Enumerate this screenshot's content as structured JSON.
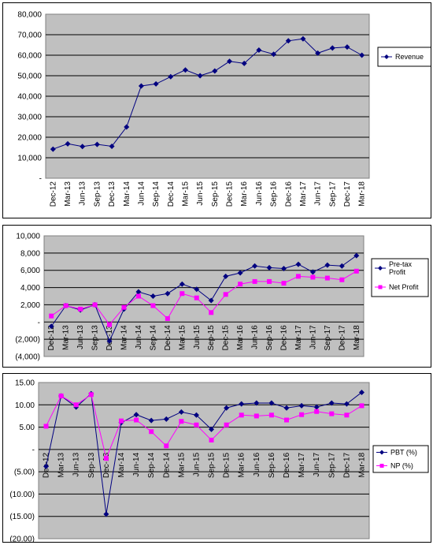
{
  "chart_data": [
    {
      "type": "line",
      "categories": [
        "Dec-12",
        "Mar-13",
        "Jun-13",
        "Sep-13",
        "Dec-13",
        "Mar-14",
        "Jun-14",
        "Sep-14",
        "Dec-14",
        "Mar-15",
        "Jun-15",
        "Sep-15",
        "Dec-15",
        "Mar-16",
        "Jun-16",
        "Sep-16",
        "Dec-16",
        "Mar-17",
        "Jun-17",
        "Sep-17",
        "Dec-17",
        "Mar-18"
      ],
      "series": [
        {
          "name": "Revenue",
          "color": "#000080",
          "marker": "diamond",
          "values": [
            14200,
            16800,
            15500,
            16500,
            15600,
            25000,
            45000,
            46000,
            49500,
            52800,
            50000,
            52300,
            57000,
            56000,
            62500,
            60500,
            67000,
            68000,
            61000,
            63500,
            64000,
            60000
          ]
        }
      ],
      "yticks": [
        "80,000",
        "70,000",
        "60,000",
        "50,000",
        "40,000",
        "30,000",
        "20,000",
        "10,000",
        "-"
      ],
      "ylim": [
        0,
        80000
      ],
      "grid": true,
      "legend_position": "right",
      "plot_background": "#c0c0c0"
    },
    {
      "type": "line",
      "categories": [
        "Dec-12",
        "Mar-13",
        "Jun-13",
        "Sep-13",
        "Dec-13",
        "Mar-14",
        "Jun-14",
        "Sep-14",
        "Dec-14",
        "Mar-15",
        "Jun-15",
        "Sep-15",
        "Dec-15",
        "Mar-16",
        "Jun-16",
        "Sep-16",
        "Dec-16",
        "Mar-17",
        "Jun-17",
        "Sep-17",
        "Dec-17",
        "Mar-18"
      ],
      "series": [
        {
          "name": "Pre-tax Profit",
          "color": "#000080",
          "marker": "diamond",
          "values": [
            -500,
            1900,
            1400,
            2000,
            -2200,
            1500,
            3500,
            3000,
            3300,
            4400,
            3800,
            2500,
            5300,
            5700,
            6500,
            6300,
            6200,
            6700,
            5800,
            6600,
            6500,
            7700
          ]
        },
        {
          "name": "Net Profit",
          "color": "#ff00ff",
          "marker": "square",
          "values": [
            700,
            1900,
            1500,
            2000,
            -300,
            1700,
            3000,
            1900,
            400,
            3300,
            2800,
            1100,
            3200,
            4400,
            4700,
            4700,
            4500,
            5300,
            5200,
            5100,
            4900,
            5900
          ]
        }
      ],
      "yticks": [
        "10,000",
        "8,000",
        "6,000",
        "4,000",
        "2,000",
        "-",
        "(2,000)",
        "(4,000)"
      ],
      "ylim": [
        -4000,
        10000
      ],
      "grid": true,
      "legend_position": "right",
      "plot_background": "#c0c0c0"
    },
    {
      "type": "line",
      "categories": [
        "Dec-12",
        "Mar-13",
        "Jun-13",
        "Sep-13",
        "Dec-13",
        "Mar-14",
        "Jun-14",
        "Sep-14",
        "Dec-14",
        "Mar-15",
        "Jun-15",
        "Sep-15",
        "Dec-15",
        "Mar-16",
        "Jun-16",
        "Sep-16",
        "Dec-16",
        "Mar-17",
        "Jun-17",
        "Sep-17",
        "Dec-17",
        "Mar-18"
      ],
      "series": [
        {
          "name": "PBT (%)",
          "color": "#000080",
          "marker": "diamond",
          "values": [
            -3.8,
            12.0,
            9.5,
            12.5,
            -14.5,
            6.0,
            7.8,
            6.5,
            6.8,
            8.4,
            7.7,
            4.5,
            9.3,
            10.2,
            10.4,
            10.4,
            9.3,
            9.8,
            9.5,
            10.4,
            10.2,
            12.8
          ]
        },
        {
          "name": "NP (%)",
          "color": "#ff00ff",
          "marker": "square",
          "values": [
            5.2,
            12.0,
            10.0,
            12.3,
            -2.0,
            6.4,
            6.6,
            4.0,
            0.8,
            6.3,
            5.5,
            2.1,
            5.5,
            7.7,
            7.5,
            7.7,
            6.6,
            7.8,
            8.5,
            8.0,
            7.7,
            9.8
          ]
        }
      ],
      "yticks": [
        "15.00",
        "10.00",
        "5.00",
        "-",
        "(5.00)",
        "(10.00)",
        "(15.00)",
        "(20.00)"
      ],
      "ylim": [
        -20,
        15
      ],
      "grid": true,
      "legend_position": "right",
      "plot_background": "#c0c0c0"
    }
  ]
}
